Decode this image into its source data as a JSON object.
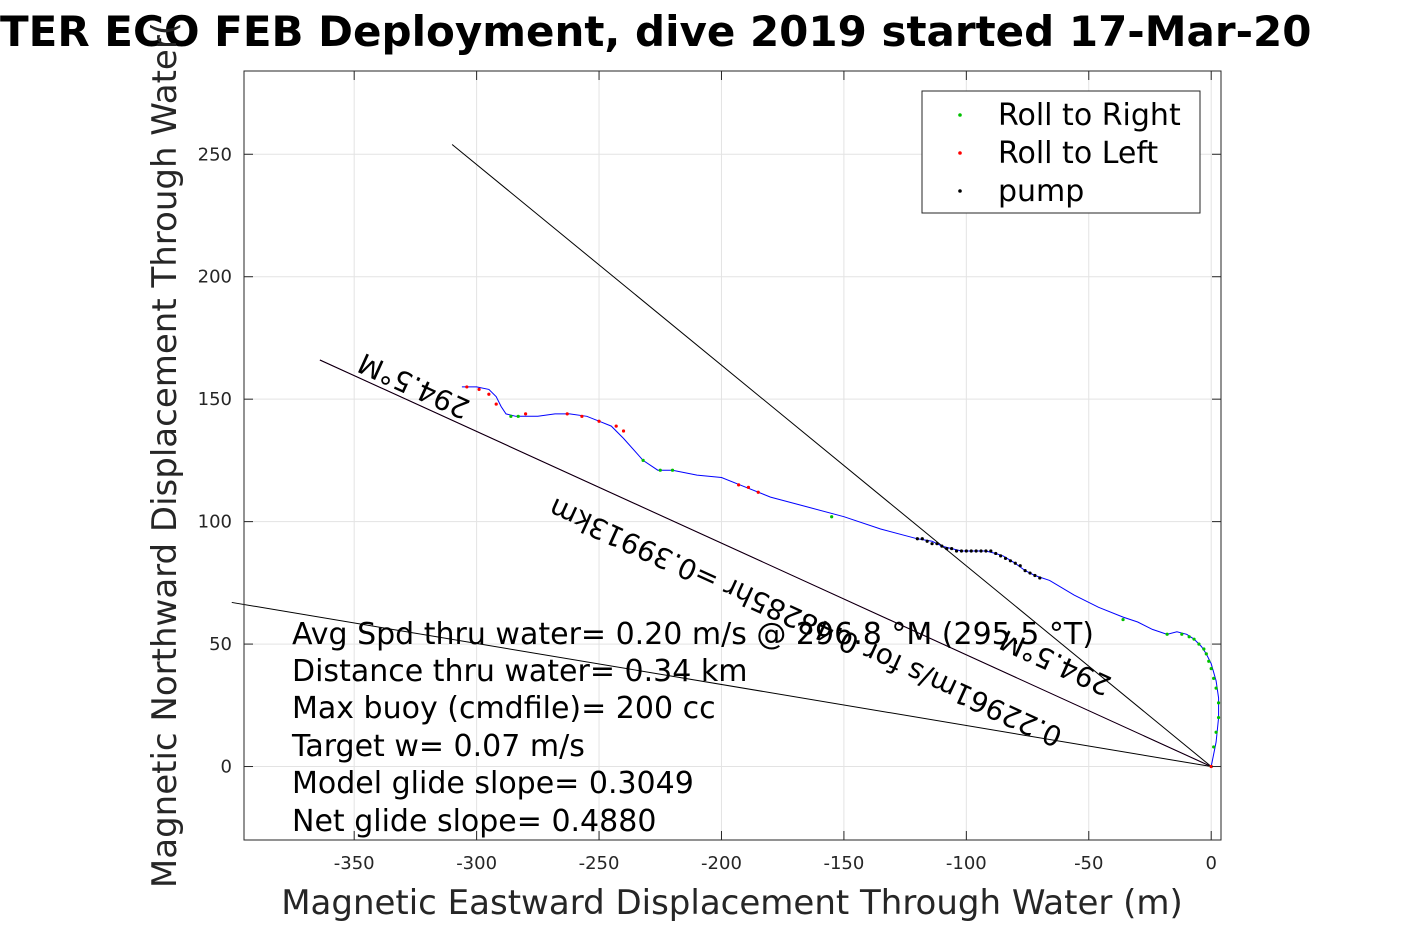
{
  "chart_data": {
    "type": "scatter",
    "title": "TER ECO FEB Deployment, dive 2019 started 17-Mar-20",
    "xlabel": "Magnetic Eastward Displacement Through Water (m)",
    "ylabel": "Magnetic Northward Displacement Through Water(",
    "xlim": [
      -395,
      4
    ],
    "ylim": [
      -30,
      284
    ],
    "xticks": [
      -350,
      -300,
      -250,
      -200,
      -150,
      -100,
      -50,
      0
    ],
    "yticks": [
      0,
      50,
      100,
      150,
      200,
      250
    ],
    "xtick_labels": [
      "-350",
      "-300",
      "-250",
      "-200",
      "-150",
      "-100",
      "-50",
      "0"
    ],
    "ytick_labels": [
      "0",
      "50",
      "100",
      "150",
      "200",
      "250"
    ],
    "grid": true,
    "legend_position": "top-right",
    "legend": [
      {
        "label": "Roll to Right",
        "color": "#00c000"
      },
      {
        "label": "Roll to Left",
        "color": "#ff0000"
      },
      {
        "label": "pump",
        "color": "#000000"
      }
    ],
    "track": {
      "color": "#0000ff",
      "x": [
        0,
        2,
        3,
        3,
        2,
        0,
        -2,
        -4,
        -7,
        -10,
        -14,
        -18,
        -24,
        -30,
        -36,
        -46,
        -56,
        -66,
        -72,
        -76,
        -80,
        -85,
        -88,
        -92,
        -95,
        -98,
        -102,
        -106,
        -110,
        -114,
        -120,
        -135,
        -150,
        -165,
        -180,
        -190,
        -200,
        -210,
        -220,
        -226,
        -232,
        -240,
        -245,
        -250,
        -255,
        -262,
        -268,
        -275,
        -280,
        -284,
        -288,
        -290,
        -292,
        -295,
        -300,
        -306
      ],
      "y": [
        0,
        10,
        20,
        28,
        35,
        42,
        46,
        49,
        52,
        54,
        55,
        54,
        56,
        59,
        61,
        65,
        70,
        76,
        78,
        80,
        83,
        86,
        87,
        88,
        88,
        88,
        88,
        89,
        90,
        92,
        93,
        97,
        102,
        106,
        110,
        114,
        118,
        119,
        121,
        121,
        125,
        134,
        139,
        141,
        143,
        144,
        144,
        143,
        143,
        143,
        144,
        147,
        151,
        154,
        155,
        155
      ]
    },
    "points_right": {
      "color": "#00c000",
      "x": [
        0,
        1,
        2,
        3,
        3,
        2,
        1,
        0,
        -1,
        -2,
        -3,
        -5,
        -7,
        -9,
        -12,
        -18,
        -36,
        -155,
        -220,
        -225,
        -232,
        -283,
        -286
      ],
      "y": [
        0,
        8,
        14,
        20,
        26,
        32,
        36,
        40,
        43,
        46,
        48,
        50,
        52,
        53,
        54,
        54,
        60,
        102,
        121,
        121,
        125,
        143,
        143
      ]
    },
    "points_left": {
      "color": "#ff0000",
      "x": [
        0,
        -185,
        -189,
        -193,
        -240,
        -243,
        -250,
        -257,
        -263,
        -280,
        -292,
        -295,
        -299,
        -304
      ],
      "y": [
        0,
        112,
        114,
        115,
        137,
        139,
        141,
        143,
        144,
        144,
        148,
        152,
        154,
        155
      ]
    },
    "points_pump": {
      "color": "#000000",
      "x": [
        -70,
        -72,
        -74,
        -76,
        -78,
        -80,
        -82,
        -84,
        -86,
        -88,
        -90,
        -92,
        -94,
        -96,
        -98,
        -100,
        -102,
        -104,
        -106,
        -108,
        -110,
        -112,
        -114,
        -116,
        -118,
        -120
      ],
      "y": [
        77,
        78,
        79,
        80,
        82,
        83,
        84,
        85,
        86,
        87,
        88,
        88,
        88,
        88,
        88,
        88,
        88,
        88,
        89,
        89,
        90,
        91,
        91,
        92,
        93,
        93
      ]
    },
    "lines": [
      {
        "name": "heading",
        "color": "#000000",
        "x": [
          0,
          -310
        ],
        "y": [
          0,
          254
        ]
      },
      {
        "name": "slope",
        "color": "#000000",
        "x": [
          0,
          -400
        ],
        "y": [
          0,
          67
        ]
      },
      {
        "name": "mean",
        "color": "#c000c0",
        "x": [
          0,
          -364
        ],
        "y": [
          0,
          166
        ]
      },
      {
        "name": "mean-black",
        "color": "#000000",
        "x": [
          0,
          -364
        ],
        "y": [
          0,
          166
        ]
      }
    ],
    "rotated_labels": [
      {
        "text": "294.5°M",
        "x": -302,
        "y": 149,
        "angle": 204.5
      },
      {
        "text": "0.22961m/s for 0.48285hr =0.39913km",
        "x": -60,
        "y": 15,
        "angle": 204.5
      },
      {
        "text": "294.5°M",
        "x": -40,
        "y": 36,
        "angle": 204.5
      }
    ],
    "annotations": [
      "Avg Spd thru water=  0.20 m/s @ 296.8 °M (295.5 °T)",
      "Distance thru water=  0.34 km",
      "Max buoy (cmdfile)= 200 cc",
      "Target w= 0.07 m/s",
      "Model glide slope= 0.3049",
      "Net glide slope= 0.4880"
    ]
  }
}
